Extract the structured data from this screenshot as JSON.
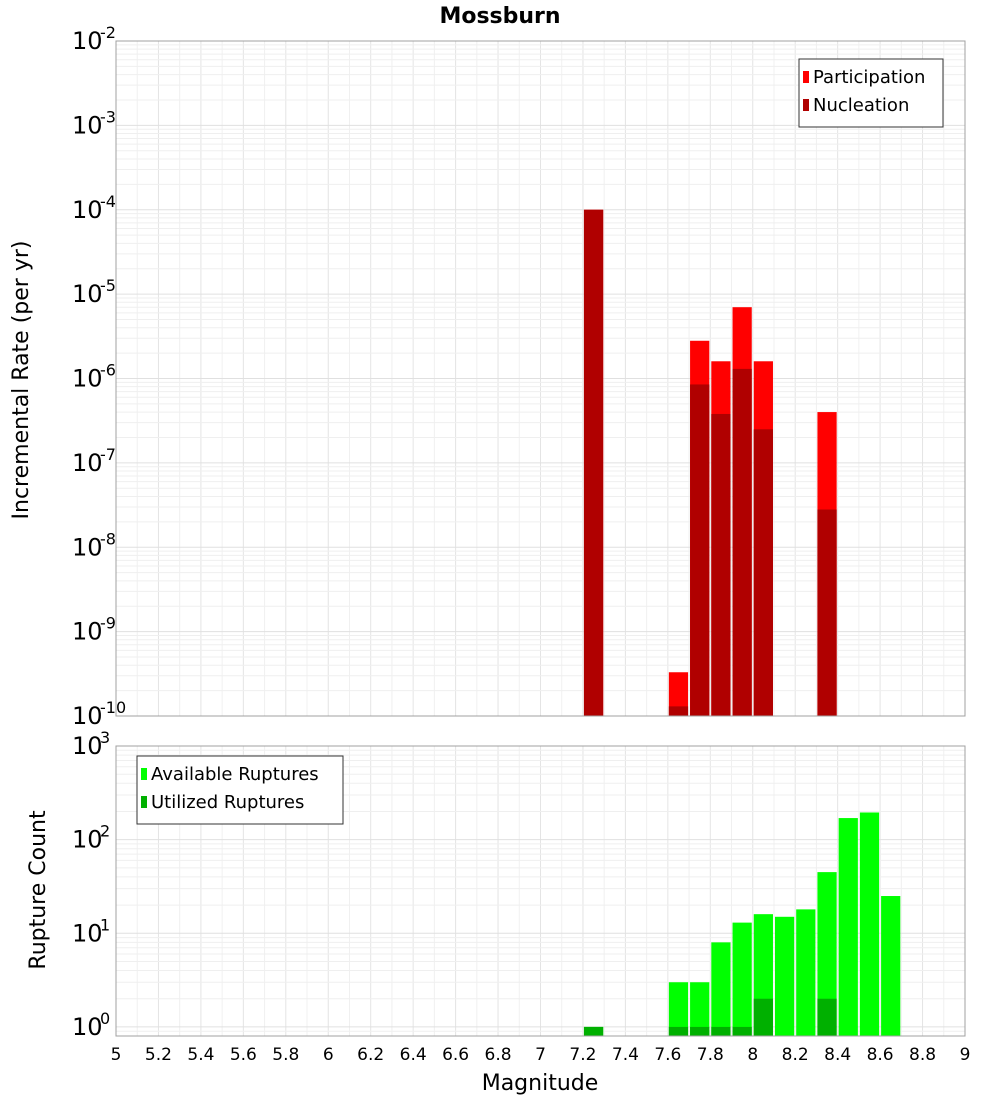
{
  "chart_data": [
    {
      "type": "bar",
      "title": "Mossburn",
      "xlabel": "",
      "ylabel": "Incremental Rate (per yr)",
      "yscale": "log",
      "xlim": [
        5,
        9
      ],
      "ylim": [
        1e-10,
        0.01
      ],
      "yticks": [
        {
          "base": "10",
          "exp": "-10",
          "value": 1e-10
        },
        {
          "base": "10",
          "exp": "-9",
          "value": 1e-09
        },
        {
          "base": "10",
          "exp": "-8",
          "value": 1e-08
        },
        {
          "base": "10",
          "exp": "-7",
          "value": 1e-07
        },
        {
          "base": "10",
          "exp": "-6",
          "value": 1e-06
        },
        {
          "base": "10",
          "exp": "-5",
          "value": 1e-05
        },
        {
          "base": "10",
          "exp": "-4",
          "value": 0.0001
        },
        {
          "base": "10",
          "exp": "-3",
          "value": 0.001
        },
        {
          "base": "10",
          "exp": "-2",
          "value": 0.01
        }
      ],
      "bar_width": 0.1,
      "grid": true,
      "legend_position": "top-right",
      "series": [
        {
          "name": "Participation",
          "color": "#ff0000",
          "x": [
            7.25,
            7.65,
            7.75,
            7.85,
            7.95,
            8.05,
            8.35
          ],
          "values": [
            0.0001,
            3.3e-10,
            2.8e-06,
            1.6e-06,
            7e-06,
            1.6e-06,
            4e-07
          ]
        },
        {
          "name": "Nucleation",
          "color": "#b00000",
          "x": [
            7.25,
            7.65,
            7.75,
            7.85,
            7.95,
            8.05,
            8.35
          ],
          "values": [
            0.0001,
            1.3e-10,
            8.5e-07,
            3.8e-07,
            1.3e-06,
            2.5e-07,
            2.8e-08
          ]
        }
      ]
    },
    {
      "type": "bar",
      "title": "",
      "xlabel": "Magnitude",
      "ylabel": "Rupture Count",
      "yscale": "log",
      "xlim": [
        5,
        9
      ],
      "ylim": [
        0.8,
        1000
      ],
      "yticks": [
        {
          "base": "10",
          "exp": "0",
          "value": 1
        },
        {
          "base": "10",
          "exp": "1",
          "value": 10
        },
        {
          "base": "10",
          "exp": "2",
          "value": 100
        },
        {
          "base": "10",
          "exp": "3",
          "value": 1000
        }
      ],
      "xticks": [
        "5",
        "5.2",
        "5.4",
        "5.6",
        "5.8",
        "6",
        "6.2",
        "6.4",
        "6.6",
        "6.8",
        "7",
        "7.2",
        "7.4",
        "7.6",
        "7.8",
        "8",
        "8.2",
        "8.4",
        "8.6",
        "8.8",
        "9"
      ],
      "bar_width": 0.1,
      "grid": true,
      "legend_position": "top-left",
      "series": [
        {
          "name": "Available Ruptures",
          "color": "#00ff00",
          "x": [
            7.25,
            7.65,
            7.75,
            7.85,
            7.95,
            8.05,
            8.15,
            8.25,
            8.35,
            8.45,
            8.55,
            8.65
          ],
          "values": [
            1,
            3,
            3,
            8,
            13,
            16,
            15,
            18,
            45,
            170,
            195,
            25
          ]
        },
        {
          "name": "Utilized Ruptures",
          "color": "#00b000",
          "x": [
            7.25,
            7.65,
            7.75,
            7.85,
            7.95,
            8.05,
            8.35
          ],
          "values": [
            1,
            1,
            1,
            1,
            1,
            2,
            2
          ]
        }
      ]
    }
  ]
}
